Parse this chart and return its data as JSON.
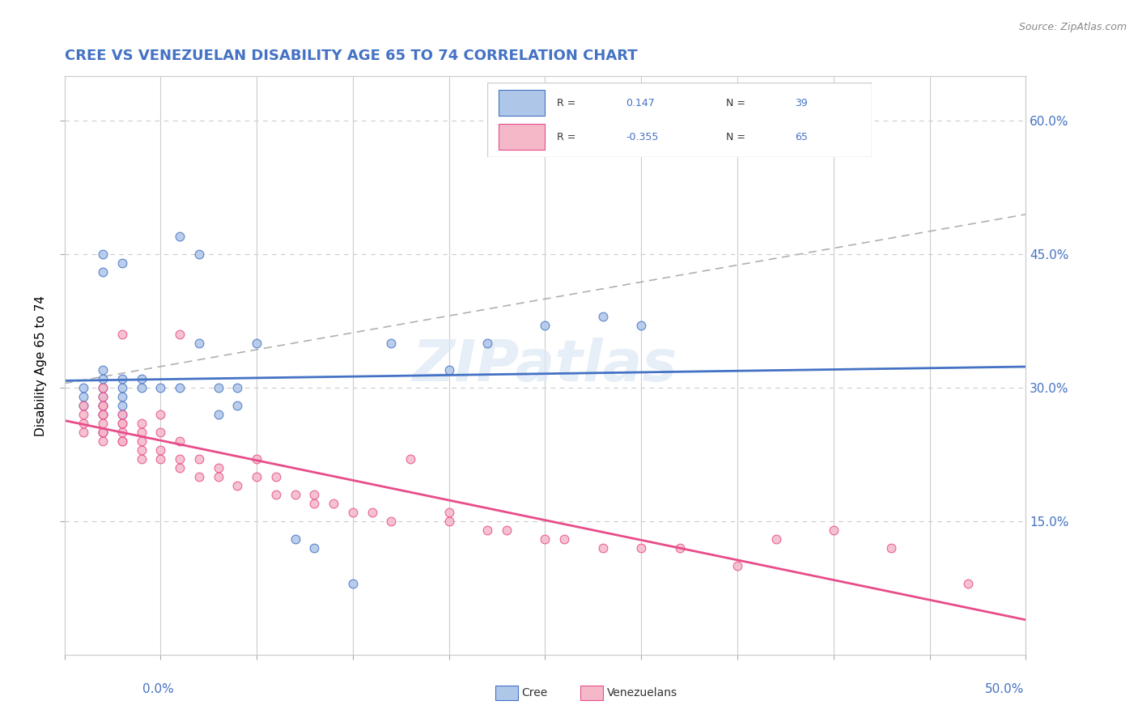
{
  "title": "CREE VS VENEZUELAN DISABILITY AGE 65 TO 74 CORRELATION CHART",
  "source": "Source: ZipAtlas.com",
  "ylabel": "Disability Age 65 to 74",
  "xmin": 0.0,
  "xmax": 0.5,
  "ymin": 0.0,
  "ymax": 0.65,
  "yticks": [
    0.15,
    0.3,
    0.45,
    0.6
  ],
  "ytick_labels": [
    "15.0%",
    "30.0%",
    "45.0%",
    "60.0%"
  ],
  "cree_R": 0.147,
  "cree_N": 39,
  "venezuelan_R": -0.355,
  "venezuelan_N": 65,
  "cree_color": "#aec6e8",
  "cree_line_color": "#4472c4",
  "venezuelan_color": "#f4b8c8",
  "venezuelan_line_color": "#e84c8b",
  "dash_line_color": "#b0b0b0",
  "title_color": "#4472c4",
  "right_tick_color": "#4472c4",
  "watermark": "ZIPatlas",
  "cree_x": [
    0.01,
    0.01,
    0.01,
    0.02,
    0.02,
    0.02,
    0.02,
    0.02,
    0.02,
    0.02,
    0.02,
    0.02,
    0.03,
    0.03,
    0.03,
    0.03,
    0.03,
    0.03,
    0.04,
    0.04,
    0.05,
    0.06,
    0.06,
    0.07,
    0.07,
    0.08,
    0.08,
    0.09,
    0.09,
    0.1,
    0.12,
    0.13,
    0.15,
    0.17,
    0.2,
    0.22,
    0.25,
    0.28,
    0.3
  ],
  "cree_y": [
    0.28,
    0.29,
    0.3,
    0.25,
    0.27,
    0.28,
    0.29,
    0.3,
    0.31,
    0.32,
    0.43,
    0.45,
    0.27,
    0.28,
    0.29,
    0.3,
    0.31,
    0.44,
    0.3,
    0.31,
    0.3,
    0.3,
    0.47,
    0.35,
    0.45,
    0.27,
    0.3,
    0.28,
    0.3,
    0.35,
    0.13,
    0.12,
    0.08,
    0.35,
    0.32,
    0.35,
    0.37,
    0.38,
    0.37
  ],
  "venezuelan_x": [
    0.01,
    0.01,
    0.01,
    0.01,
    0.02,
    0.02,
    0.02,
    0.02,
    0.02,
    0.02,
    0.02,
    0.02,
    0.02,
    0.02,
    0.03,
    0.03,
    0.03,
    0.03,
    0.03,
    0.03,
    0.03,
    0.04,
    0.04,
    0.04,
    0.04,
    0.04,
    0.05,
    0.05,
    0.05,
    0.05,
    0.06,
    0.06,
    0.06,
    0.06,
    0.07,
    0.07,
    0.08,
    0.08,
    0.09,
    0.1,
    0.1,
    0.11,
    0.11,
    0.12,
    0.13,
    0.13,
    0.14,
    0.15,
    0.16,
    0.17,
    0.18,
    0.2,
    0.2,
    0.22,
    0.23,
    0.25,
    0.26,
    0.28,
    0.3,
    0.32,
    0.35,
    0.37,
    0.4,
    0.43,
    0.47
  ],
  "venezuelan_y": [
    0.25,
    0.26,
    0.27,
    0.28,
    0.24,
    0.25,
    0.25,
    0.26,
    0.27,
    0.27,
    0.28,
    0.28,
    0.29,
    0.3,
    0.24,
    0.24,
    0.25,
    0.26,
    0.26,
    0.27,
    0.36,
    0.22,
    0.23,
    0.24,
    0.25,
    0.26,
    0.22,
    0.23,
    0.25,
    0.27,
    0.21,
    0.22,
    0.24,
    0.36,
    0.2,
    0.22,
    0.2,
    0.21,
    0.19,
    0.2,
    0.22,
    0.18,
    0.2,
    0.18,
    0.17,
    0.18,
    0.17,
    0.16,
    0.16,
    0.15,
    0.22,
    0.15,
    0.16,
    0.14,
    0.14,
    0.13,
    0.13,
    0.12,
    0.12,
    0.12,
    0.1,
    0.13,
    0.14,
    0.12,
    0.08
  ]
}
